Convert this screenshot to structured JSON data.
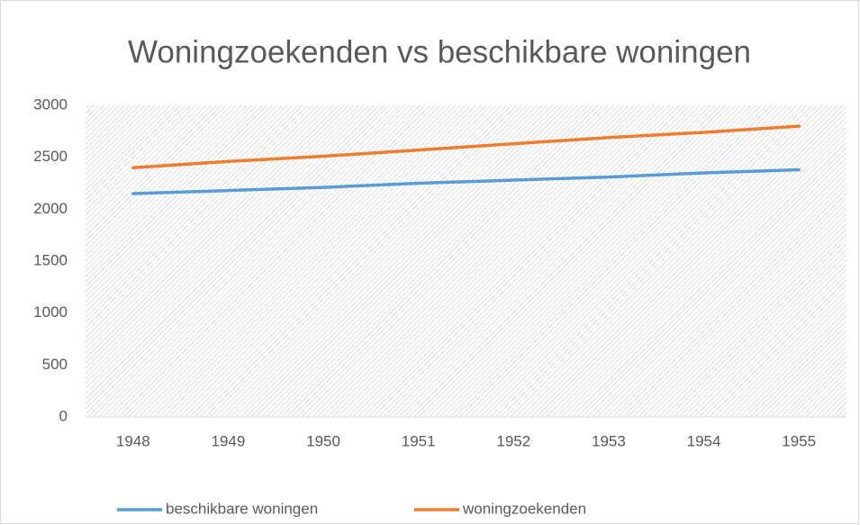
{
  "chart_data": {
    "type": "line",
    "title": "Woningzoekenden vs beschikbare woningen",
    "categories": [
      "1948",
      "1949",
      "1950",
      "1951",
      "1952",
      "1953",
      "1954",
      "1955"
    ],
    "series": [
      {
        "name": "beschikbare woningen",
        "color": "#5b9bd5",
        "values": [
          2150,
          2180,
          2210,
          2250,
          2280,
          2310,
          2350,
          2380
        ]
      },
      {
        "name": "woningzoekenden",
        "color": "#ed7d31",
        "values": [
          2400,
          2460,
          2510,
          2570,
          2630,
          2690,
          2740,
          2800
        ]
      }
    ],
    "ylim": [
      0,
      3000
    ],
    "yticks": [
      0,
      500,
      1000,
      1500,
      2000,
      2500,
      3000
    ],
    "grid": false,
    "legend": "bottom"
  }
}
